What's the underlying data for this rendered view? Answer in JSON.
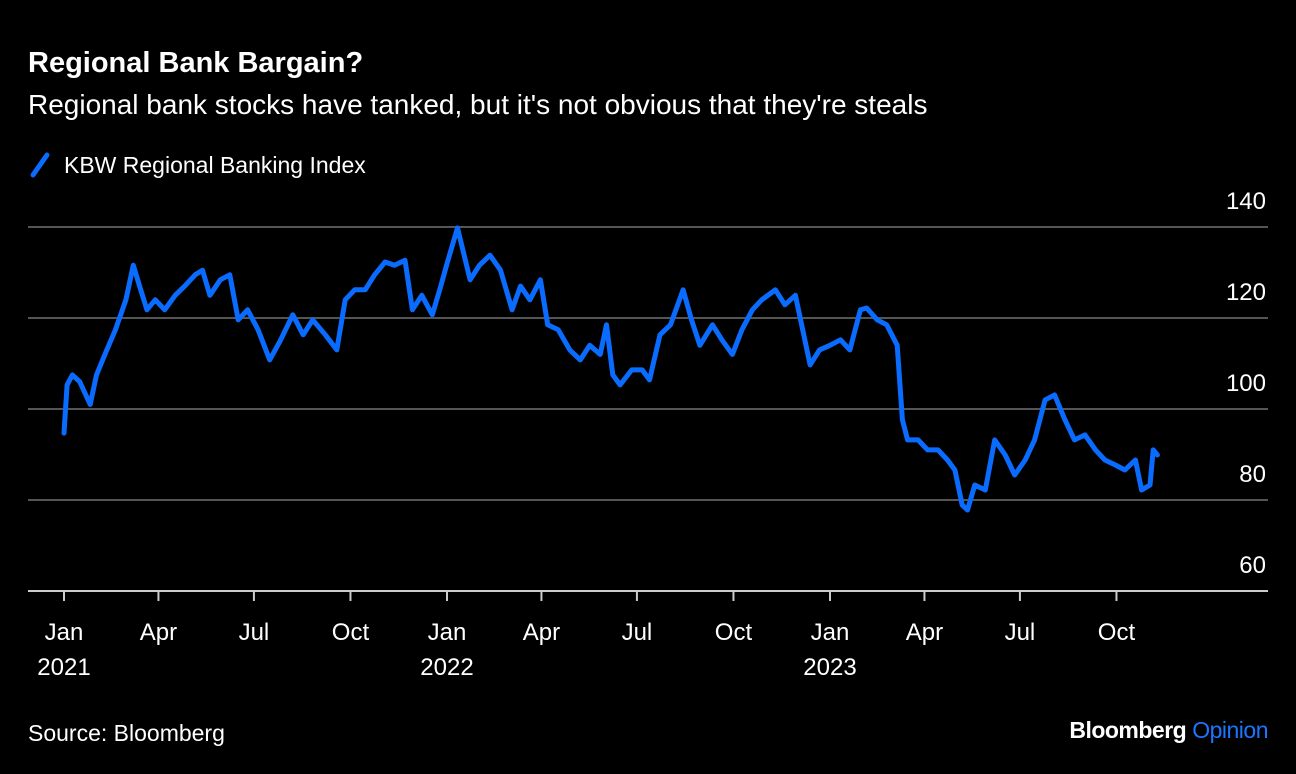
{
  "title": "Regional Bank Bargain?",
  "subtitle": "Regional bank stocks have tanked, but it's not obvious that they're steals",
  "source": "Source: Bloomberg",
  "logo": {
    "brand": "Bloomberg",
    "product": "Opinion",
    "brand_color": "#ffffff",
    "product_color": "#1a75ff"
  },
  "colors": {
    "background": "#000000",
    "line": "#0a6cff",
    "grid": "#555555",
    "axis": "#cccccc"
  },
  "chart_data": {
    "type": "line",
    "title": "Regional Bank Bargain?",
    "subtitle": "Regional bank stocks have tanked, but it's not obvious that they're steals",
    "xlabel": "",
    "ylabel": "",
    "ylim": [
      60,
      140
    ],
    "xlim": [
      "2020-12-10",
      "2024-01-31"
    ],
    "y_axis_position": "right",
    "grid": true,
    "legend": "top-left",
    "yticks": [
      140,
      120,
      100,
      80,
      60
    ],
    "xticks": [
      {
        "date": "2021-01-01",
        "label": "Jan",
        "year": "2021"
      },
      {
        "date": "2021-04-01",
        "label": "Apr",
        "year": ""
      },
      {
        "date": "2021-07-01",
        "label": "Jul",
        "year": ""
      },
      {
        "date": "2021-10-01",
        "label": "Oct",
        "year": ""
      },
      {
        "date": "2022-01-01",
        "label": "Jan",
        "year": "2022"
      },
      {
        "date": "2022-04-01",
        "label": "Apr",
        "year": ""
      },
      {
        "date": "2022-07-01",
        "label": "Jul",
        "year": ""
      },
      {
        "date": "2022-10-01",
        "label": "Oct",
        "year": ""
      },
      {
        "date": "2023-01-01",
        "label": "Jan",
        "year": "2023"
      },
      {
        "date": "2023-04-01",
        "label": "Apr",
        "year": ""
      },
      {
        "date": "2023-07-01",
        "label": "Jul",
        "year": ""
      },
      {
        "date": "2023-10-01",
        "label": "Oct",
        "year": ""
      }
    ],
    "series": [
      {
        "name": "KBW Regional Banking Index",
        "color": "#0a6cff",
        "points": [
          [
            "2021-01-01",
            94.7
          ],
          [
            "2021-01-04",
            105.3
          ],
          [
            "2021-01-09",
            107.5
          ],
          [
            "2021-01-16",
            106
          ],
          [
            "2021-01-26",
            101
          ],
          [
            "2021-02-01",
            107.5
          ],
          [
            "2021-02-09",
            112
          ],
          [
            "2021-02-19",
            117.4
          ],
          [
            "2021-03-01",
            124
          ],
          [
            "2021-03-08",
            131.6
          ],
          [
            "2021-03-14",
            127
          ],
          [
            "2021-03-21",
            121.8
          ],
          [
            "2021-03-29",
            124
          ],
          [
            "2021-04-07",
            121.8
          ],
          [
            "2021-04-17",
            125
          ],
          [
            "2021-04-26",
            127
          ],
          [
            "2021-05-06",
            129.5
          ],
          [
            "2021-05-13",
            130.5
          ],
          [
            "2021-05-20",
            125
          ],
          [
            "2021-05-30",
            128.4
          ],
          [
            "2021-06-08",
            129.5
          ],
          [
            "2021-06-16",
            119.6
          ],
          [
            "2021-06-25",
            121.8
          ],
          [
            "2021-07-05",
            117.4
          ],
          [
            "2021-07-16",
            110.8
          ],
          [
            "2021-07-26",
            115
          ],
          [
            "2021-08-07",
            120.7
          ],
          [
            "2021-08-17",
            116.3
          ],
          [
            "2021-08-26",
            119.6
          ],
          [
            "2021-09-07",
            116.3
          ],
          [
            "2021-09-18",
            113
          ],
          [
            "2021-09-26",
            124
          ],
          [
            "2021-10-05",
            126.2
          ],
          [
            "2021-10-15",
            126.2
          ],
          [
            "2021-10-24",
            129.5
          ],
          [
            "2021-11-03",
            132.3
          ],
          [
            "2021-11-12",
            131.6
          ],
          [
            "2021-11-22",
            132.7
          ],
          [
            "2021-11-29",
            121.8
          ],
          [
            "2021-12-08",
            125
          ],
          [
            "2021-12-18",
            120.7
          ],
          [
            "2021-12-25",
            126.2
          ],
          [
            "2022-01-02",
            132.7
          ],
          [
            "2022-01-11",
            139.8
          ],
          [
            "2022-01-15",
            136
          ],
          [
            "2022-01-23",
            128.4
          ],
          [
            "2022-02-01",
            131.6
          ],
          [
            "2022-02-11",
            133.8
          ],
          [
            "2022-02-21",
            130.5
          ],
          [
            "2022-03-04",
            121.8
          ],
          [
            "2022-03-12",
            127
          ],
          [
            "2022-03-21",
            124
          ],
          [
            "2022-03-31",
            128.4
          ],
          [
            "2022-04-07",
            118.5
          ],
          [
            "2022-04-17",
            117.4
          ],
          [
            "2022-04-28",
            113
          ],
          [
            "2022-05-08",
            110.8
          ],
          [
            "2022-05-17",
            114
          ],
          [
            "2022-05-27",
            112
          ],
          [
            "2022-06-02",
            118.5
          ],
          [
            "2022-06-08",
            107.5
          ],
          [
            "2022-06-15",
            105.3
          ],
          [
            "2022-06-26",
            108.6
          ],
          [
            "2022-07-06",
            108.6
          ],
          [
            "2022-07-13",
            106.4
          ],
          [
            "2022-07-23",
            116.3
          ],
          [
            "2022-08-02",
            118.5
          ],
          [
            "2022-08-14",
            126.2
          ],
          [
            "2022-08-22",
            119.6
          ],
          [
            "2022-08-30",
            114
          ],
          [
            "2022-09-11",
            118.5
          ],
          [
            "2022-09-20",
            115.2
          ],
          [
            "2022-09-30",
            112
          ],
          [
            "2022-10-09",
            117.4
          ],
          [
            "2022-10-19",
            121.8
          ],
          [
            "2022-10-28",
            124
          ],
          [
            "2022-11-10",
            126.2
          ],
          [
            "2022-11-19",
            122.9
          ],
          [
            "2022-11-29",
            125
          ],
          [
            "2022-12-06",
            117.4
          ],
          [
            "2022-12-13",
            109.7
          ],
          [
            "2022-12-22",
            113
          ],
          [
            "2023-01-01",
            114
          ],
          [
            "2023-01-11",
            115.2
          ],
          [
            "2023-01-20",
            113
          ],
          [
            "2023-01-30",
            121.8
          ],
          [
            "2023-02-05",
            122.2
          ],
          [
            "2023-02-15",
            119.6
          ],
          [
            "2023-02-24",
            118.5
          ],
          [
            "2023-03-06",
            114
          ],
          [
            "2023-03-11",
            97.6
          ],
          [
            "2023-03-16",
            93.2
          ],
          [
            "2023-03-26",
            93.2
          ],
          [
            "2023-04-04",
            91
          ],
          [
            "2023-04-14",
            91
          ],
          [
            "2023-04-23",
            88.8
          ],
          [
            "2023-04-30",
            86.6
          ],
          [
            "2023-05-07",
            78.9
          ],
          [
            "2023-05-12",
            77.8
          ],
          [
            "2023-05-19",
            83.3
          ],
          [
            "2023-05-29",
            82.2
          ],
          [
            "2023-06-07",
            93.2
          ],
          [
            "2023-06-17",
            89.9
          ],
          [
            "2023-06-26",
            85.5
          ],
          [
            "2023-07-06",
            88.8
          ],
          [
            "2023-07-15",
            93.2
          ],
          [
            "2023-07-25",
            102
          ],
          [
            "2023-08-03",
            103.1
          ],
          [
            "2023-08-13",
            97.6
          ],
          [
            "2023-08-22",
            93.2
          ],
          [
            "2023-09-01",
            94.3
          ],
          [
            "2023-09-11",
            91
          ],
          [
            "2023-09-20",
            88.8
          ],
          [
            "2023-09-30",
            87.7
          ],
          [
            "2023-10-09",
            86.6
          ],
          [
            "2023-10-19",
            88.8
          ],
          [
            "2023-10-25",
            82.2
          ],
          [
            "2023-11-02",
            83.3
          ],
          [
            "2023-11-05",
            91
          ],
          [
            "2023-11-09",
            89.9
          ]
        ]
      }
    ]
  }
}
